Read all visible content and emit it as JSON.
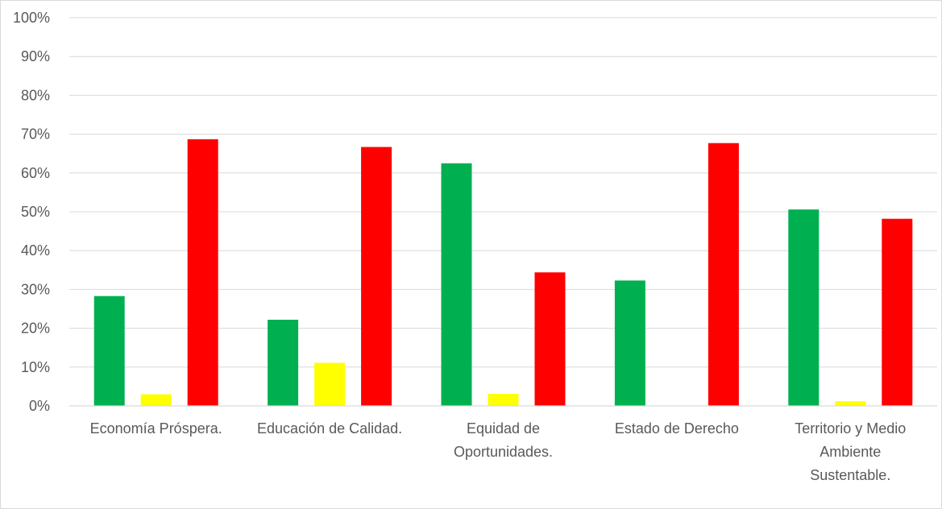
{
  "chart_data": {
    "type": "bar",
    "categories": [
      [
        "Economía Próspera."
      ],
      [
        "Educación de Calidad."
      ],
      [
        "Equidad de",
        "Oportunidades."
      ],
      [
        "Estado de Derecho"
      ],
      [
        "Territorio y Medio",
        "Ambiente",
        "Sustentable."
      ]
    ],
    "series": [
      {
        "values": [
          28.3,
          22.2,
          62.5,
          32.3,
          50.6
        ],
        "color": "#00b050"
      },
      {
        "values": [
          3.0,
          11.1,
          3.1,
          0,
          1.2
        ],
        "color": "#ffff00"
      },
      {
        "values": [
          68.7,
          66.7,
          34.4,
          67.7,
          48.2
        ],
        "color": "#ff0000"
      }
    ],
    "ylim": [
      0,
      100
    ],
    "yticks": [
      "0%",
      "10%",
      "20%",
      "30%",
      "40%",
      "50%",
      "60%",
      "70%",
      "80%",
      "90%",
      "100%"
    ],
    "grid": true,
    "legend": "none"
  }
}
